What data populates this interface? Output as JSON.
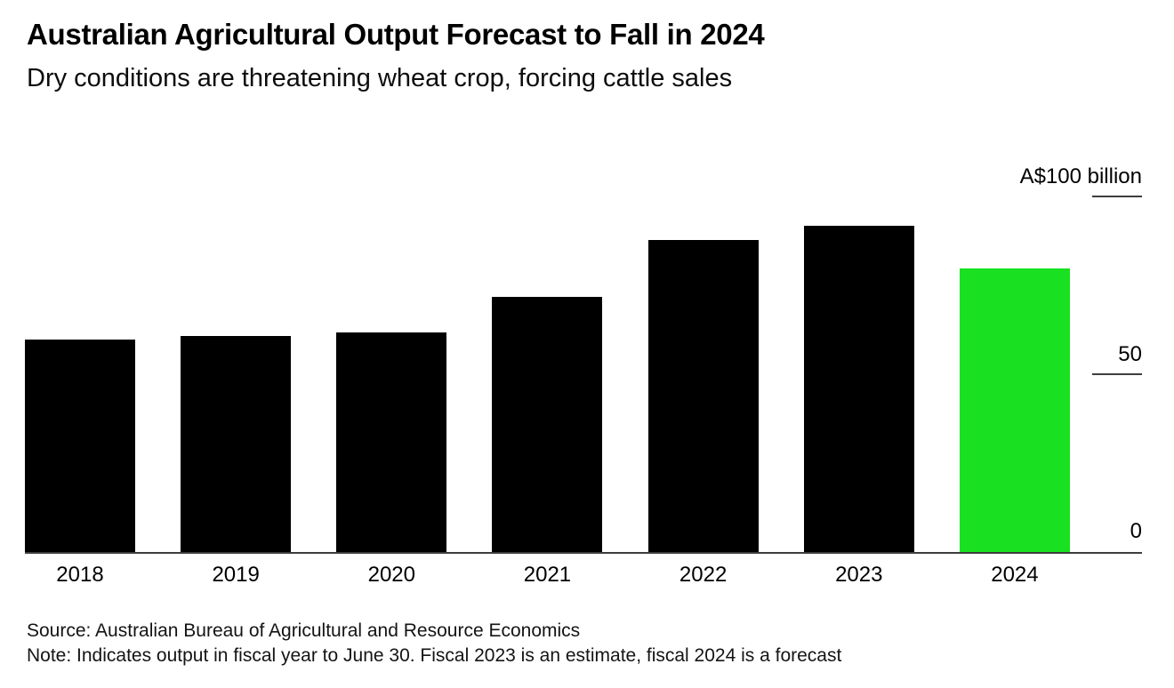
{
  "header": {
    "title": "Australian Agricultural Output Forecast to Fall in 2024",
    "subtitle": "Dry conditions are threatening wheat crop, forcing cattle sales"
  },
  "chart_data": {
    "type": "bar",
    "title": "Australian Agricultural Output Forecast to Fall in 2024",
    "subtitle": "Dry conditions are threatening wheat crop, forcing cattle sales",
    "unit_label": "A$100 billion",
    "categories": [
      "2018",
      "2019",
      "2020",
      "2021",
      "2022",
      "2023",
      "2024"
    ],
    "values": [
      60,
      61,
      62,
      72,
      88,
      92,
      80
    ],
    "bar_colors": [
      "#000000",
      "#000000",
      "#000000",
      "#000000",
      "#000000",
      "#000000",
      "#19E121"
    ],
    "highlight_category": "2024",
    "highlight_meaning": "forecast",
    "xlabel": "",
    "ylabel": "A$ billion",
    "ylim": [
      0,
      100
    ],
    "yticks": [
      {
        "value": 100,
        "label": "A$100 billion"
      },
      {
        "value": 50,
        "label": "50"
      },
      {
        "value": 0,
        "label": "0"
      }
    ],
    "axis_side": "right",
    "grid": false,
    "legend_position": "none"
  },
  "footer": {
    "source": "Source: Australian Bureau of Agricultural and Resource Economics",
    "note": "Note: Indicates output in fiscal year to June 30. Fiscal 2023 is an estimate, fiscal 2024 is a forecast"
  },
  "colors": {
    "bar_default": "#000000",
    "bar_forecast": "#19E121",
    "axis": "#3d3d3d",
    "background": "#ffffff"
  }
}
